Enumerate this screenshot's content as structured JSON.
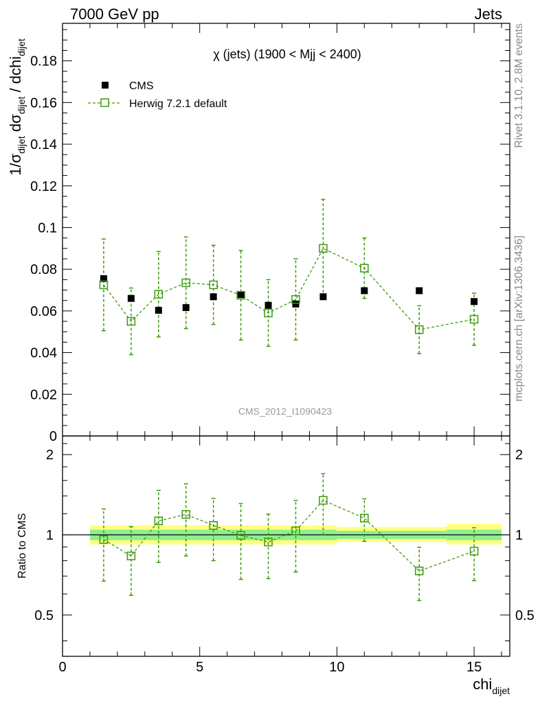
{
  "header": {
    "left": "7000 GeV pp",
    "right": "Jets"
  },
  "side_labels": {
    "rivet": "Rivet 3.1.10,  2.8M events",
    "mcplots": "mcplots.cern.ch [arXiv:1306.3436]"
  },
  "colors": {
    "data": "#000000",
    "mc": "#3a9a0a",
    "band_inner": "#90ee90",
    "band_outer": "#ffff80"
  },
  "chart_data": [
    {
      "type": "scatter",
      "title": "χ (jets) (1900 < Mjj < 2400)",
      "watermark": "CMS_2012_I1090423",
      "ylabel": "1/σ_dijet dσ_dijet / dchi_dijet",
      "ylim": [
        0,
        0.198
      ],
      "yticks": [
        "0",
        "0.02",
        "0.04",
        "0.06",
        "0.08",
        "0.1",
        "0.12",
        "0.14",
        "0.16",
        "0.18"
      ],
      "xlim": [
        0,
        16.3
      ],
      "legend_position": "top-left",
      "series": [
        {
          "name": "CMS",
          "marker": "filled-square",
          "x": [
            1.5,
            2.5,
            3.5,
            4.5,
            5.5,
            6.5,
            7.5,
            8.5,
            9.5,
            11,
            13,
            15
          ],
          "y": [
            0.0755,
            0.066,
            0.0603,
            0.0616,
            0.0668,
            0.0678,
            0.0627,
            0.0633,
            0.0668,
            0.0697,
            0.0697,
            0.0645
          ]
        },
        {
          "name": "Herwig 7.2.1 default",
          "marker": "open-square",
          "line": "dashed",
          "x": [
            1.5,
            2.5,
            3.5,
            4.5,
            5.5,
            6.5,
            7.5,
            8.5,
            9.5,
            11,
            13,
            15
          ],
          "y": [
            0.0725,
            0.055,
            0.068,
            0.0735,
            0.0725,
            0.0675,
            0.059,
            0.0655,
            0.09,
            0.0805,
            0.051,
            0.056
          ],
          "yerr_low": [
            0.022,
            0.016,
            0.0205,
            0.022,
            0.019,
            0.0215,
            0.016,
            0.0195,
            0.0235,
            0.0145,
            0.0115,
            0.0125
          ],
          "yerr_high": [
            0.022,
            0.016,
            0.0205,
            0.022,
            0.019,
            0.0215,
            0.016,
            0.0195,
            0.0235,
            0.0145,
            0.0115,
            0.0125
          ]
        }
      ]
    },
    {
      "type": "scatter",
      "ylabel": "Ratio to CMS",
      "xlabel": "chi_dijet",
      "ylim": [
        0.35,
        2.35
      ],
      "ylog": true,
      "yticks": [
        "0.5",
        "1",
        "2"
      ],
      "xlim": [
        0,
        16.3
      ],
      "xticks": [
        "0",
        "5",
        "10",
        "15"
      ],
      "bands": [
        {
          "x_from": 1,
          "x_to": 5,
          "inner": [
            0.955,
            1.045
          ],
          "outer": [
            0.92,
            1.085
          ]
        },
        {
          "x_from": 5,
          "x_to": 10,
          "inner": [
            0.955,
            1.045
          ],
          "outer": [
            0.92,
            1.085
          ]
        },
        {
          "x_from": 10,
          "x_to": 14,
          "inner": [
            0.965,
            1.035
          ],
          "outer": [
            0.94,
            1.07
          ]
        },
        {
          "x_from": 14,
          "x_to": 16,
          "inner": [
            0.955,
            1.045
          ],
          "outer": [
            0.92,
            1.1
          ]
        }
      ],
      "series": [
        {
          "name": "Herwig 7.2.1 default",
          "x": [
            1.5,
            2.5,
            3.5,
            4.5,
            5.5,
            6.5,
            7.5,
            8.5,
            9.5,
            11,
            13,
            15
          ],
          "y": [
            0.96,
            0.833,
            1.128,
            1.193,
            1.085,
            0.995,
            0.94,
            1.035,
            1.347,
            1.155,
            0.732,
            0.868
          ],
          "yerr_low": [
            0.29,
            0.24,
            0.34,
            0.36,
            0.285,
            0.315,
            0.255,
            0.31,
            0.35,
            0.21,
            0.165,
            0.195
          ],
          "yerr_high": [
            0.29,
            0.24,
            0.34,
            0.36,
            0.285,
            0.315,
            0.255,
            0.31,
            0.35,
            0.21,
            0.165,
            0.195
          ]
        }
      ]
    }
  ]
}
